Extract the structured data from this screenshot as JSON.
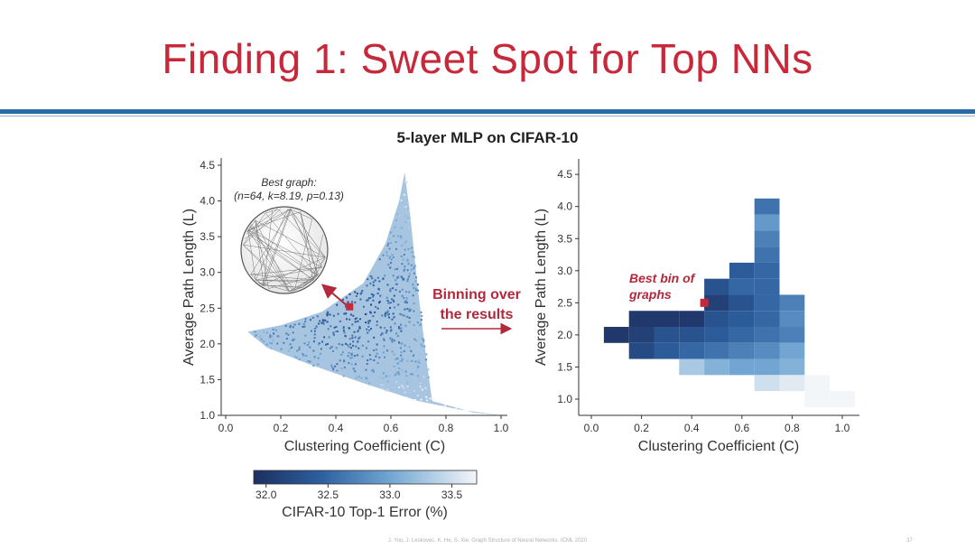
{
  "slide": {
    "title": "Finding 1: Sweet Spot for Top NNs",
    "footer_citation": "J. You, J. Leskovec, K. He, S. Xie. Graph Structure of Neural Networks. ICML 2020",
    "page_number": "37"
  },
  "chart_data": [
    {
      "id": "left-scatter",
      "type": "scatter",
      "title": "5-layer MLP on CIFAR-10",
      "xlabel": "Clustering Coefficient (C)",
      "ylabel": "Average Path Length (L)",
      "xlim": [
        0.0,
        1.0
      ],
      "ylim": [
        1.0,
        4.5
      ],
      "xticks": [
        "0.0",
        "0.2",
        "0.4",
        "0.6",
        "0.8",
        "1.0"
      ],
      "yticks": [
        "1.0",
        "1.5",
        "2.0",
        "2.5",
        "3.0",
        "3.5",
        "4.0",
        "4.5"
      ],
      "region": {
        "description_points": [
          [
            0.08,
            2.17
          ],
          [
            0.2,
            2.26
          ],
          [
            0.35,
            2.45
          ],
          [
            0.5,
            2.85
          ],
          [
            0.58,
            3.4
          ],
          [
            0.63,
            4.0
          ],
          [
            0.65,
            4.4
          ],
          [
            0.67,
            3.8
          ],
          [
            0.7,
            2.7
          ],
          [
            0.73,
            1.75
          ],
          [
            0.75,
            1.2
          ],
          [
            0.9,
            1.04
          ],
          [
            1.0,
            1.0
          ],
          [
            0.85,
            1.08
          ],
          [
            0.7,
            1.2
          ],
          [
            0.5,
            1.45
          ],
          [
            0.3,
            1.72
          ],
          [
            0.15,
            1.95
          ]
        ],
        "best_point": [
          0.45,
          2.52
        ]
      },
      "annotation_title": "Best graph:",
      "annotation_params": "(n=64, k=8.19, p=0.13)"
    },
    {
      "id": "right-heatmap",
      "type": "heatmap",
      "xlabel": "Clustering Coefficient (C)",
      "ylabel": "Average Path Length (L)",
      "xlim": [
        -0.05,
        1.05
      ],
      "ylim": [
        0.85,
        4.65
      ],
      "xticks": [
        "0.0",
        "0.2",
        "0.4",
        "0.6",
        "0.8",
        "1.0"
      ],
      "yticks": [
        "1.0",
        "1.5",
        "2.0",
        "2.5",
        "3.0",
        "3.5",
        "4.0",
        "4.5"
      ],
      "bin_width_c": 0.1,
      "bin_height_l": 0.25,
      "bins": [
        {
          "c": 0.1,
          "l": 2.0,
          "error": 32.0
        },
        {
          "c": 0.2,
          "l": 2.0,
          "error": 32.1
        },
        {
          "c": 0.2,
          "l": 2.25,
          "error": 32.0
        },
        {
          "c": 0.2,
          "l": 1.75,
          "error": 32.2
        },
        {
          "c": 0.3,
          "l": 2.25,
          "error": 32.0
        },
        {
          "c": 0.3,
          "l": 2.0,
          "error": 32.3
        },
        {
          "c": 0.3,
          "l": 1.75,
          "error": 32.4
        },
        {
          "c": 0.4,
          "l": 2.25,
          "error": 32.0
        },
        {
          "c": 0.4,
          "l": 2.0,
          "error": 32.3
        },
        {
          "c": 0.4,
          "l": 1.75,
          "error": 32.5
        },
        {
          "c": 0.4,
          "l": 1.5,
          "error": 33.3
        },
        {
          "c": 0.5,
          "l": 2.75,
          "error": 32.3
        },
        {
          "c": 0.5,
          "l": 2.5,
          "error": 32.1
        },
        {
          "c": 0.5,
          "l": 2.25,
          "error": 32.3
        },
        {
          "c": 0.5,
          "l": 2.0,
          "error": 32.4
        },
        {
          "c": 0.5,
          "l": 1.75,
          "error": 32.6
        },
        {
          "c": 0.5,
          "l": 1.5,
          "error": 33.1
        },
        {
          "c": 0.6,
          "l": 3.0,
          "error": 32.4
        },
        {
          "c": 0.6,
          "l": 2.75,
          "error": 32.5
        },
        {
          "c": 0.6,
          "l": 2.5,
          "error": 32.3
        },
        {
          "c": 0.6,
          "l": 2.25,
          "error": 32.4
        },
        {
          "c": 0.6,
          "l": 2.0,
          "error": 32.5
        },
        {
          "c": 0.6,
          "l": 1.75,
          "error": 32.7
        },
        {
          "c": 0.6,
          "l": 1.5,
          "error": 33.0
        },
        {
          "c": 0.7,
          "l": 4.0,
          "error": 32.6
        },
        {
          "c": 0.7,
          "l": 3.75,
          "error": 32.9
        },
        {
          "c": 0.7,
          "l": 3.5,
          "error": 32.7
        },
        {
          "c": 0.7,
          "l": 3.25,
          "error": 32.6
        },
        {
          "c": 0.7,
          "l": 3.0,
          "error": 32.5
        },
        {
          "c": 0.7,
          "l": 2.75,
          "error": 32.5
        },
        {
          "c": 0.7,
          "l": 2.5,
          "error": 32.5
        },
        {
          "c": 0.7,
          "l": 2.25,
          "error": 32.5
        },
        {
          "c": 0.7,
          "l": 2.0,
          "error": 32.6
        },
        {
          "c": 0.7,
          "l": 1.75,
          "error": 32.8
        },
        {
          "c": 0.7,
          "l": 1.5,
          "error": 33.0
        },
        {
          "c": 0.7,
          "l": 1.25,
          "error": 33.5
        },
        {
          "c": 0.8,
          "l": 2.5,
          "error": 32.7
        },
        {
          "c": 0.8,
          "l": 2.25,
          "error": 32.8
        },
        {
          "c": 0.8,
          "l": 2.0,
          "error": 32.7
        },
        {
          "c": 0.8,
          "l": 1.75,
          "error": 33.0
        },
        {
          "c": 0.8,
          "l": 1.5,
          "error": 33.1
        },
        {
          "c": 0.8,
          "l": 1.25,
          "error": 33.6
        },
        {
          "c": 0.9,
          "l": 1.25,
          "error": 33.7
        },
        {
          "c": 0.9,
          "l": 1.0,
          "error": 33.8
        },
        {
          "c": 1.0,
          "l": 1.0,
          "error": 33.8
        }
      ],
      "best_bin": {
        "c": 0.45,
        "l": 2.5
      },
      "annotation_line1": "Best bin of",
      "annotation_line2": "graphs"
    }
  ],
  "transition": {
    "line1": "Binning over",
    "line2": "the results"
  },
  "colorbar": {
    "label": "CIFAR-10 Top-1 Error (%)",
    "range": [
      31.9,
      33.7
    ],
    "ticks": [
      "32.0",
      "32.5",
      "33.0",
      "33.5"
    ]
  },
  "colors": {
    "title_red": "#c7283a",
    "rule_blue": "#2c6aa6",
    "annotation_red": "#b3283a",
    "cmap_dark": "#1d2f5f",
    "cmap_mid": "#3b78b4",
    "cmap_light": "#f3f6f9"
  }
}
